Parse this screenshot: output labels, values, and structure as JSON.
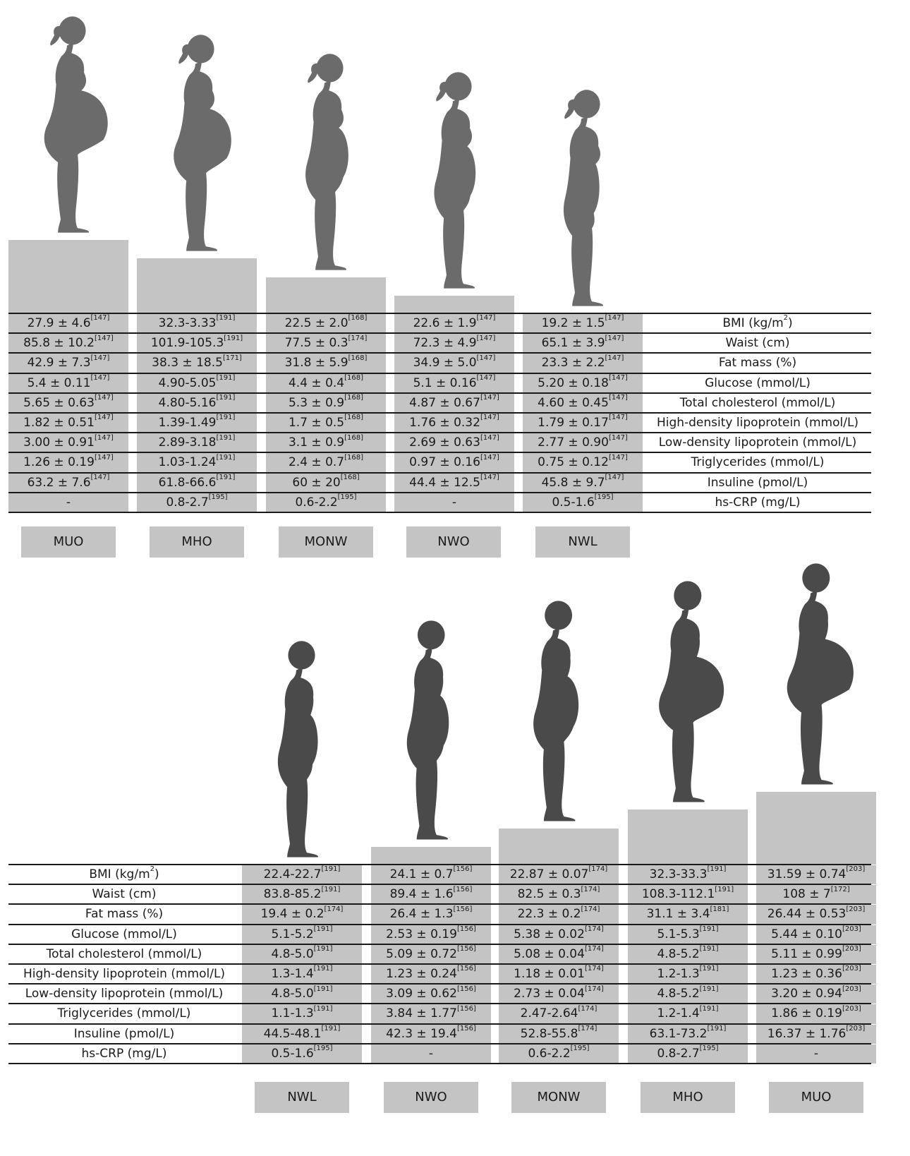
{
  "top": {
    "silhouette_color": "#6b6b6b",
    "groups": [
      "MUO",
      "MHO",
      "MONW",
      "NWO",
      "NWL"
    ],
    "row_labels": [
      {
        "text": "BMI (kg/m",
        "sup": "2",
        "tail": ")"
      },
      {
        "text": "Waist (cm)",
        "sup": "",
        "tail": ""
      },
      {
        "text": "Fat mass (%)",
        "sup": "",
        "tail": ""
      },
      {
        "text": "Glucose (mmol/L)",
        "sup": "",
        "tail": ""
      },
      {
        "text": "Total cholesterol (mmol/L)",
        "sup": "",
        "tail": ""
      },
      {
        "text": "High-density lipoprotein (mmol/L)",
        "sup": "",
        "tail": ""
      },
      {
        "text": "Low-density lipoprotein (mmol/L)",
        "sup": "",
        "tail": ""
      },
      {
        "text": "Triglycerides (mmol/L)",
        "sup": "",
        "tail": ""
      },
      {
        "text": "Insuline (pmol/L)",
        "sup": "",
        "tail": ""
      },
      {
        "text": "hs-CRP (mg/L)",
        "sup": "",
        "tail": ""
      }
    ],
    "values": [
      [
        {
          "v": "27.9 ± 4.6",
          "r": "[147]"
        },
        {
          "v": "32.3-3.33",
          "r": "[191]"
        },
        {
          "v": "22.5 ± 2.0",
          "r": "[168]"
        },
        {
          "v": "22.6 ± 1.9",
          "r": "[147]"
        },
        {
          "v": "19.2 ± 1.5",
          "r": "[147]"
        }
      ],
      [
        {
          "v": "85.8 ± 10.2",
          "r": "[147]"
        },
        {
          "v": "101.9-105.3",
          "r": "[191]"
        },
        {
          "v": "77.5 ± 0.3",
          "r": "[174]"
        },
        {
          "v": "72.3 ± 4.9",
          "r": "[147]"
        },
        {
          "v": "65.1 ± 3.9",
          "r": "[147]"
        }
      ],
      [
        {
          "v": "42.9 ± 7.3",
          "r": "[147]"
        },
        {
          "v": "38.3 ± 18.5",
          "r": "[171]"
        },
        {
          "v": "31.8 ± 5.9",
          "r": "[168]"
        },
        {
          "v": "34.9 ± 5.0",
          "r": "[147]"
        },
        {
          "v": "23.3 ± 2.2",
          "r": "[147]"
        }
      ],
      [
        {
          "v": "5.4 ± 0.11",
          "r": "[147]"
        },
        {
          "v": "4.90-5.05",
          "r": "[191]"
        },
        {
          "v": "4.4 ± 0.4",
          "r": "[168]"
        },
        {
          "v": "5.1 ± 0.16",
          "r": "[147]"
        },
        {
          "v": "5.20 ± 0.18",
          "r": "[147]"
        }
      ],
      [
        {
          "v": "5.65 ± 0.63",
          "r": "[147]"
        },
        {
          "v": "4.80-5.16",
          "r": "[191]"
        },
        {
          "v": "5.3 ± 0.9",
          "r": "[168]"
        },
        {
          "v": "4.87 ± 0.67",
          "r": "[147]"
        },
        {
          "v": "4.60 ± 0.45",
          "r": "[147]"
        }
      ],
      [
        {
          "v": "1.82 ± 0.51",
          "r": "[147]"
        },
        {
          "v": "1.39-1.49",
          "r": "[191]"
        },
        {
          "v": "1.7 ± 0.5",
          "r": "[168]"
        },
        {
          "v": "1.76 ± 0.32",
          "r": "[147]"
        },
        {
          "v": "1.79 ± 0.17",
          "r": "[147]"
        }
      ],
      [
        {
          "v": "3.00 ± 0.91",
          "r": "[147]"
        },
        {
          "v": "2.89-3.18",
          "r": "[191]"
        },
        {
          "v": "3.1 ± 0.9",
          "r": "[168]"
        },
        {
          "v": "2.69 ± 0.63",
          "r": "[147]"
        },
        {
          "v": "2.77 ± 0.90",
          "r": "[147]"
        }
      ],
      [
        {
          "v": "1.26 ± 0.19",
          "r": "[147]"
        },
        {
          "v": "1.03-1.24",
          "r": "[191]"
        },
        {
          "v": "2.4 ± 0.7",
          "r": "[168]"
        },
        {
          "v": "0.97 ± 0.16",
          "r": "[147]"
        },
        {
          "v": "0.75 ± 0.12",
          "r": "[147]"
        }
      ],
      [
        {
          "v": "63.2 ± 7.6",
          "r": "[147]"
        },
        {
          "v": "61.8-66.6",
          "r": "[191]"
        },
        {
          "v": "60 ± 20",
          "r": "[168]"
        },
        {
          "v": "44.4 ± 12.5",
          "r": "[147]"
        },
        {
          "v": "45.8 ± 9.7",
          "r": "[147]"
        }
      ],
      [
        {
          "v": "-",
          "r": ""
        },
        {
          "v": "0.8-2.7",
          "r": "[195]"
        },
        {
          "v": "0.6-2.2",
          "r": "[195]"
        },
        {
          "v": "-",
          "r": ""
        },
        {
          "v": "0.5-1.6",
          "r": "[195]"
        }
      ]
    ]
  },
  "bottom": {
    "silhouette_color": "#4a4a4a",
    "groups": [
      "NWL",
      "NWO",
      "MONW",
      "MHO",
      "MUO"
    ],
    "row_labels": [
      {
        "text": "BMI (kg/m",
        "sup": "2",
        "tail": ")"
      },
      {
        "text": "Waist (cm)",
        "sup": "",
        "tail": ""
      },
      {
        "text": "Fat mass (%)",
        "sup": "",
        "tail": ""
      },
      {
        "text": "Glucose (mmol/L)",
        "sup": "",
        "tail": ""
      },
      {
        "text": "Total cholesterol (mmol/L)",
        "sup": "",
        "tail": ""
      },
      {
        "text": "High-density lipoprotein (mmol/L)",
        "sup": "",
        "tail": ""
      },
      {
        "text": "Low-density lipoprotein (mmol/L)",
        "sup": "",
        "tail": ""
      },
      {
        "text": "Triglycerides (mmol/L)",
        "sup": "",
        "tail": ""
      },
      {
        "text": "Insuline (pmol/L)",
        "sup": "",
        "tail": ""
      },
      {
        "text": "hs-CRP (mg/L)",
        "sup": "",
        "tail": ""
      }
    ],
    "values": [
      [
        {
          "v": "22.4-22.7",
          "r": "[191]"
        },
        {
          "v": "24.1 ± 0.7",
          "r": "[156]"
        },
        {
          "v": "22.87 ± 0.07",
          "r": "[174]"
        },
        {
          "v": "32.3-33.3",
          "r": "[191]"
        },
        {
          "v": "31.59 ± 0.74",
          "r": "[203]"
        }
      ],
      [
        {
          "v": "83.8-85.2",
          "r": "[191]"
        },
        {
          "v": "89.4 ± 1.6",
          "r": "[156]"
        },
        {
          "v": "82.5 ± 0.3",
          "r": "[174]"
        },
        {
          "v": "108.3-112.1",
          "r": "[191]"
        },
        {
          "v": "108 ± 7",
          "r": "[172]"
        }
      ],
      [
        {
          "v": "19.4 ± 0.2",
          "r": "[174]"
        },
        {
          "v": "26.4 ± 1.3",
          "r": "[156]"
        },
        {
          "v": "22.3 ± 0.2",
          "r": "[174]"
        },
        {
          "v": "31.1 ± 3.4",
          "r": "[181]"
        },
        {
          "v": "26.44 ± 0.53",
          "r": "[203]"
        }
      ],
      [
        {
          "v": "5.1-5.2",
          "r": "[191]"
        },
        {
          "v": "2.53 ± 0.19",
          "r": "[156]"
        },
        {
          "v": "5.38 ± 0.02",
          "r": "[174]"
        },
        {
          "v": "5.1-5.3",
          "r": "[191]"
        },
        {
          "v": "5.44 ± 0.10",
          "r": "[203]"
        }
      ],
      [
        {
          "v": "4.8-5.0",
          "r": "[191]"
        },
        {
          "v": "5.09 ± 0.72",
          "r": "[156]"
        },
        {
          "v": "5.08 ± 0.04",
          "r": "[174]"
        },
        {
          "v": "4.8-5.2",
          "r": "[191]"
        },
        {
          "v": "5.11 ± 0.99",
          "r": "[203]"
        }
      ],
      [
        {
          "v": "1.3-1.4",
          "r": "[191]"
        },
        {
          "v": "1.23 ± 0.24",
          "r": "[156]"
        },
        {
          "v": "1.18 ± 0.01",
          "r": "[174]"
        },
        {
          "v": "1.2-1.3",
          "r": "[191]"
        },
        {
          "v": "1.23 ± 0.36",
          "r": "[203]"
        }
      ],
      [
        {
          "v": "4.8-5.0",
          "r": "[191]"
        },
        {
          "v": "3.09 ± 0.62",
          "r": "[156]"
        },
        {
          "v": "2.73 ± 0.04",
          "r": "[174]"
        },
        {
          "v": "4.8-5.2",
          "r": "[191]"
        },
        {
          "v": "3.20 ± 0.94",
          "r": "[203]"
        }
      ],
      [
        {
          "v": "1.1-1.3",
          "r": "[191]"
        },
        {
          "v": "3.84 ± 1.77",
          "r": "[156]"
        },
        {
          "v": "2.47-2.64",
          "r": "[174]"
        },
        {
          "v": "1.2-1.4",
          "r": "[191]"
        },
        {
          "v": "1.86 ± 0.19",
          "r": "[203]"
        }
      ],
      [
        {
          "v": "44.5-48.1",
          "r": "[191]"
        },
        {
          "v": "42.3 ± 19.4",
          "r": "[156]"
        },
        {
          "v": "52.8-55.8",
          "r": "[174]"
        },
        {
          "v": "63.1-73.2",
          "r": "[191]"
        },
        {
          "v": "16.37 ± 1.76",
          "r": "[203]"
        }
      ],
      [
        {
          "v": "0.5-1.6",
          "r": "[195]"
        },
        {
          "v": "-",
          "r": ""
        },
        {
          "v": "0.6-2.2",
          "r": "[195]"
        },
        {
          "v": "0.8-2.7",
          "r": "[195]"
        },
        {
          "v": "-",
          "r": ""
        }
      ]
    ]
  }
}
